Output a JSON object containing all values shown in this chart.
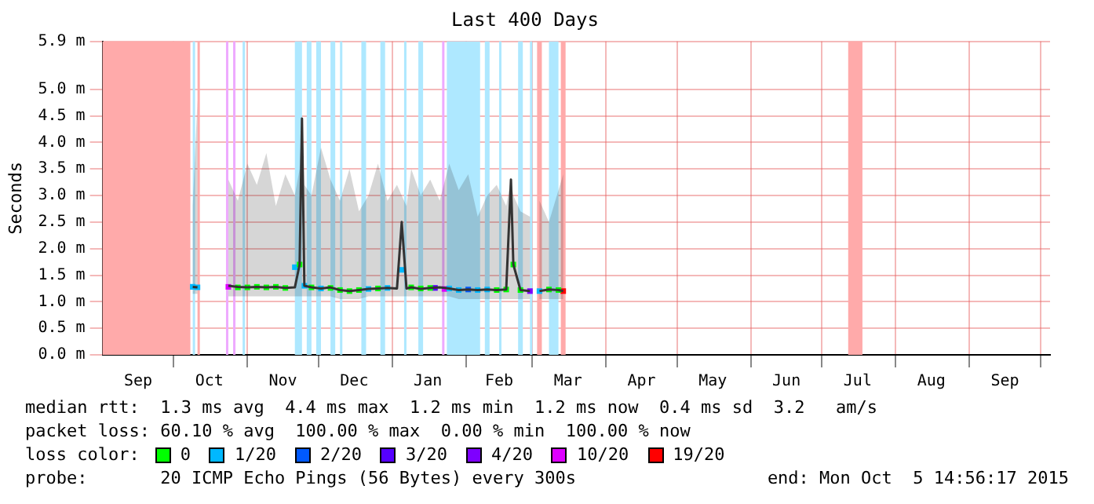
{
  "chart_data": {
    "type": "line",
    "title": "Last 400 Days",
    "ylabel": "Seconds",
    "xlim": [
      "2014-09-01",
      "2015-10-05"
    ],
    "xticks": [
      {
        "value": "2014-09-16",
        "label": "Sep"
      },
      {
        "value": "2014-10-01",
        "label": null
      },
      {
        "value": "2014-10-16",
        "label": "Oct"
      },
      {
        "value": "2014-11-01",
        "label": null
      },
      {
        "value": "2014-11-16",
        "label": "Nov"
      },
      {
        "value": "2014-12-01",
        "label": null
      },
      {
        "value": "2014-12-16",
        "label": "Dec"
      },
      {
        "value": "2015-01-01",
        "label": null
      },
      {
        "value": "2015-01-16",
        "label": "Jan"
      },
      {
        "value": "2015-02-01",
        "label": null
      },
      {
        "value": "2015-02-15",
        "label": "Feb"
      },
      {
        "value": "2015-03-01",
        "label": null
      },
      {
        "value": "2015-03-16",
        "label": "Mar"
      },
      {
        "value": "2015-04-01",
        "label": null
      },
      {
        "value": "2015-04-16",
        "label": "Apr"
      },
      {
        "value": "2015-05-01",
        "label": null
      },
      {
        "value": "2015-05-16",
        "label": "May"
      },
      {
        "value": "2015-06-01",
        "label": null
      },
      {
        "value": "2015-06-16",
        "label": "Jun"
      },
      {
        "value": "2015-07-01",
        "label": null
      },
      {
        "value": "2015-07-16",
        "label": "Jul"
      },
      {
        "value": "2015-08-01",
        "label": null
      },
      {
        "value": "2015-08-16",
        "label": "Aug"
      },
      {
        "value": "2015-09-01",
        "label": null
      },
      {
        "value": "2015-09-16",
        "label": "Sep"
      },
      {
        "value": "2015-10-01",
        "label": null
      }
    ],
    "ylim": [
      0,
      5.9
    ],
    "yticks": [
      {
        "value": 0,
        "label": "0.0 m"
      },
      {
        "value": 0.5,
        "label": "0.5 m"
      },
      {
        "value": 1,
        "label": "1.0 m"
      },
      {
        "value": 1.5,
        "label": "1.5 m"
      },
      {
        "value": 2,
        "label": "2.0 m"
      },
      {
        "value": 2.5,
        "label": "2.5 m"
      },
      {
        "value": 3,
        "label": "3.0 m"
      },
      {
        "value": 3.5,
        "label": "3.5 m"
      },
      {
        "value": 4,
        "label": "4.0 m"
      },
      {
        "value": 4.5,
        "label": "4.5 m"
      },
      {
        "value": 5,
        "label": "5.0 m"
      },
      {
        "value": 5.9,
        "label": "5.9 m"
      }
    ],
    "grid": true,
    "legend": "bottom",
    "legend_title": "loss color:",
    "marker": "square",
    "series": [
      {
        "type": "line",
        "marker": "none",
        "color": "#303030",
        "x": [
          "2014-10-09",
          "2014-10-11"
        ],
        "values": [
          1.28,
          1.27
        ],
        "upper": [
          2.8,
          4.8
        ],
        "lower": [
          1.15,
          1.15
        ]
      },
      {
        "type": "line",
        "marker": "none",
        "color": "#333333",
        "x": [
          "2014-10-24",
          "2014-10-28",
          "2014-11-01",
          "2014-11-05",
          "2014-11-09",
          "2014-11-13",
          "2014-11-17",
          "2014-11-21",
          "2014-11-23",
          "2014-11-24",
          "2014-11-25",
          "2014-11-28",
          "2014-12-02",
          "2014-12-06",
          "2014-12-10",
          "2014-12-14",
          "2014-12-18",
          "2014-12-22",
          "2014-12-26",
          "2014-12-30",
          "2015-01-03",
          "2015-01-05",
          "2015-01-07",
          "2015-01-09",
          "2015-01-13",
          "2015-01-17",
          "2015-01-21",
          "2015-01-25",
          "2015-01-29",
          "2015-02-02",
          "2015-02-06",
          "2015-02-10",
          "2015-02-14",
          "2015-02-18",
          "2015-02-20",
          "2015-02-21",
          "2015-02-24",
          "2015-02-28"
        ],
        "values": [
          1.3,
          1.28,
          1.27,
          1.28,
          1.27,
          1.28,
          1.26,
          1.27,
          1.7,
          4.45,
          1.3,
          1.27,
          1.25,
          1.27,
          1.22,
          1.2,
          1.22,
          1.24,
          1.25,
          1.26,
          1.25,
          2.5,
          1.25,
          1.27,
          1.24,
          1.26,
          1.27,
          1.25,
          1.22,
          1.23,
          1.22,
          1.23,
          1.22,
          1.23,
          3.3,
          1.7,
          1.22,
          1.2
        ],
        "upper": [
          3.3,
          2.9,
          3.6,
          3.2,
          3.8,
          2.8,
          3.4,
          3.0,
          3.5,
          4.45,
          3.2,
          3.0,
          3.9,
          3.3,
          2.9,
          3.5,
          2.7,
          3.0,
          3.6,
          2.9,
          3.2,
          3.0,
          2.8,
          3.5,
          3.0,
          3.3,
          2.9,
          3.6,
          3.1,
          3.4,
          2.6,
          3.0,
          3.2,
          2.8,
          3.3,
          3.0,
          2.7,
          2.6
        ],
        "lower": [
          1.1,
          1.1,
          1.1,
          1.1,
          1.1,
          1.1,
          1.1,
          1.1,
          1.1,
          1.1,
          1.1,
          1.1,
          1.1,
          1.1,
          1.05,
          1.05,
          1.05,
          1.1,
          1.1,
          1.1,
          1.1,
          1.1,
          1.1,
          1.1,
          1.1,
          1.1,
          1.1,
          1.1,
          1.05,
          1.05,
          1.05,
          1.05,
          1.05,
          1.05,
          1.05,
          1.05,
          1.05,
          1.05
        ]
      },
      {
        "type": "line",
        "marker": "none",
        "color": "#363636",
        "x": [
          "2015-03-04",
          "2015-03-08",
          "2015-03-12",
          "2015-03-14"
        ],
        "values": [
          1.2,
          1.23,
          1.22,
          1.2
        ],
        "upper": [
          2.9,
          2.5,
          3.1,
          3.4
        ],
        "lower": [
          1.05,
          1.05,
          1.05,
          1.05
        ]
      },
      {
        "type": "scatter",
        "name": "0",
        "color": "#00ff00",
        "x": [
          "2014-10-28",
          "2014-11-01",
          "2014-11-05",
          "2014-11-09",
          "2014-11-13",
          "2014-11-17",
          "2014-11-23",
          "2014-11-28",
          "2014-12-06",
          "2014-12-10",
          "2014-12-14",
          "2014-12-18",
          "2014-12-26",
          "2015-01-09",
          "2015-01-13",
          "2015-01-17",
          "2015-02-14",
          "2015-02-18",
          "2015-02-21",
          "2015-02-24",
          "2015-03-08",
          "2015-03-12"
        ],
        "values": [
          1.27,
          1.27,
          1.28,
          1.27,
          1.28,
          1.26,
          1.7,
          1.27,
          1.26,
          1.22,
          1.2,
          1.22,
          1.25,
          1.27,
          1.25,
          1.26,
          1.22,
          1.23,
          1.7,
          1.22,
          1.23,
          1.22
        ]
      },
      {
        "type": "scatter",
        "name": "1/20",
        "color": "#00b8ff",
        "x": [
          "2014-10-09",
          "2014-10-11",
          "2014-11-21",
          "2014-11-25",
          "2014-12-02",
          "2014-12-22",
          "2014-12-30",
          "2015-01-05",
          "2015-01-25",
          "2015-01-29",
          "2015-02-06",
          "2015-02-10",
          "2015-03-04"
        ],
        "values": [
          1.28,
          1.27,
          1.65,
          1.3,
          1.25,
          1.24,
          1.26,
          1.6,
          1.25,
          1.22,
          1.22,
          1.23,
          1.2
        ]
      },
      {
        "type": "scatter",
        "name": "2/20",
        "color": "#0059ff",
        "x": [
          "2015-02-02"
        ],
        "values": [
          1.23
        ]
      },
      {
        "type": "scatter",
        "name": "3/20",
        "color": "#5500ff",
        "x": [
          "2015-01-19"
        ],
        "values": [
          1.26
        ]
      },
      {
        "type": "scatter",
        "name": "4/20",
        "color": "#7e00ff",
        "x": [
          "2015-02-28"
        ],
        "values": [
          1.2
        ]
      },
      {
        "type": "scatter",
        "name": "10/20",
        "color": "#dd00ff",
        "x": [
          "2014-10-24",
          "2015-01-23"
        ],
        "values": [
          1.28,
          1.24
        ]
      },
      {
        "type": "scatter",
        "name": "19/20",
        "color": "#ff0000",
        "x": [
          "2015-03-14"
        ],
        "values": [
          1.2
        ]
      }
    ],
    "bands": [
      {
        "axis": "x",
        "from": "2014-09-01",
        "to": "2014-10-08",
        "color": "#ffaaaa"
      },
      {
        "axis": "x",
        "from": "2014-10-09",
        "to": "2014-10-10",
        "color": "#aee8ff"
      },
      {
        "axis": "x",
        "from": "2014-10-11",
        "to": "2014-10-12",
        "color": "#ffaaaa"
      },
      {
        "axis": "x",
        "from": "2014-10-23",
        "to": "2014-10-24",
        "color": "#eeaaff"
      },
      {
        "axis": "x",
        "from": "2014-10-26",
        "to": "2014-10-27",
        "color": "#eeaaff"
      },
      {
        "axis": "x",
        "from": "2014-10-30",
        "to": "2014-10-31",
        "color": "#aee8ff"
      },
      {
        "axis": "x",
        "from": "2014-11-21",
        "to": "2014-11-24",
        "color": "#aee8ff"
      },
      {
        "axis": "x",
        "from": "2014-11-26",
        "to": "2014-11-28",
        "color": "#aee8ff"
      },
      {
        "axis": "x",
        "from": "2014-11-30",
        "to": "2014-12-02",
        "color": "#aee8ff"
      },
      {
        "axis": "x",
        "from": "2014-12-06",
        "to": "2014-12-08",
        "color": "#aee8ff"
      },
      {
        "axis": "x",
        "from": "2014-12-10",
        "to": "2014-12-11",
        "color": "#aee8ff"
      },
      {
        "axis": "x",
        "from": "2014-12-19",
        "to": "2014-12-21",
        "color": "#aee8ff"
      },
      {
        "axis": "x",
        "from": "2014-12-27",
        "to": "2014-12-29",
        "color": "#aee8ff"
      },
      {
        "axis": "x",
        "from": "2015-01-06",
        "to": "2015-01-07",
        "color": "#aee8ff"
      },
      {
        "axis": "x",
        "from": "2015-01-12",
        "to": "2015-01-14",
        "color": "#aee8ff"
      },
      {
        "axis": "x",
        "from": "2015-01-22",
        "to": "2015-01-23",
        "color": "#eeaaff"
      },
      {
        "axis": "x",
        "from": "2015-01-24",
        "to": "2015-02-07",
        "color": "#aee8ff"
      },
      {
        "axis": "x",
        "from": "2015-02-09",
        "to": "2015-02-11",
        "color": "#aee8ff"
      },
      {
        "axis": "x",
        "from": "2015-02-15",
        "to": "2015-02-16",
        "color": "#aee8ff"
      },
      {
        "axis": "x",
        "from": "2015-02-23",
        "to": "2015-02-25",
        "color": "#aee8ff"
      },
      {
        "axis": "x",
        "from": "2015-02-28",
        "to": "2015-03-01",
        "color": "#aee8ff"
      },
      {
        "axis": "x",
        "from": "2015-03-03",
        "to": "2015-03-05",
        "color": "#ffaaaa"
      },
      {
        "axis": "x",
        "from": "2015-03-08",
        "to": "2015-03-12",
        "color": "#aee8ff"
      },
      {
        "axis": "x",
        "from": "2015-03-13",
        "to": "2015-03-15",
        "color": "#ffaaaa"
      },
      {
        "axis": "x",
        "from": "2015-07-12",
        "to": "2015-07-18",
        "color": "#ffaaaa"
      }
    ],
    "annotations": [
      "median rtt:  1.3 ms avg  4.4 ms max  1.2 ms min  1.2 ms now  0.4 ms sd  3.2   am/s",
      "packet loss: 60.10 % avg  100.00 % max  0.00 % min  100.00 % now",
      "probe:       20 ICMP Echo Pings (56 Bytes) every 300s",
      "end: Mon Oct  5 14:56:17 2015"
    ]
  }
}
